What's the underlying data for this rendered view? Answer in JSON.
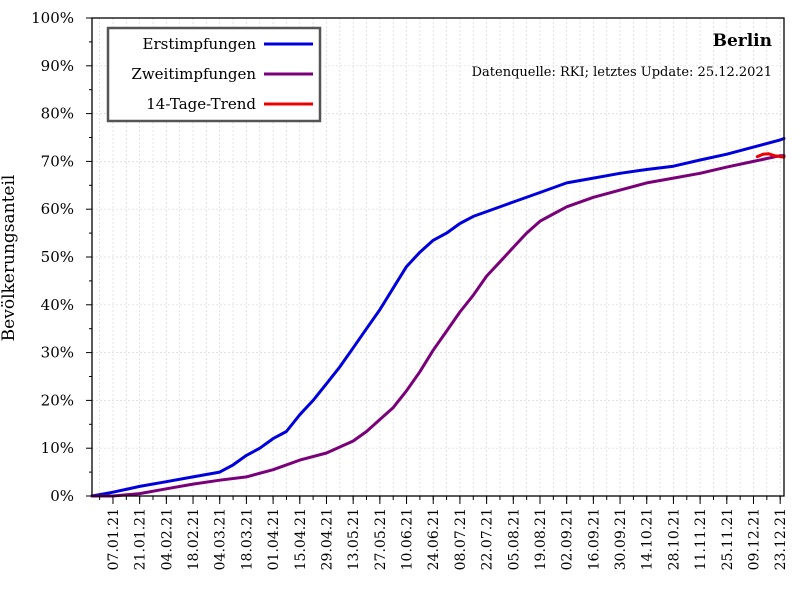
{
  "chart_data": {
    "type": "line",
    "title": "Berlin",
    "subtitle": "Datenquelle: RKI; letztes Update: 25.12.2021",
    "ylabel": "Bevölkerungsanteil",
    "xlabel": "",
    "ylim": [
      0,
      100
    ],
    "y_ticks": [
      "0%",
      "10%",
      "20%",
      "30%",
      "40%",
      "50%",
      "60%",
      "70%",
      "80%",
      "90%",
      "100%"
    ],
    "x_tick_labels": [
      "07.01.21",
      "21.01.21",
      "04.02.21",
      "18.02.21",
      "04.03.21",
      "18.03.21",
      "01.04.21",
      "15.04.21",
      "29.04.21",
      "13.05.21",
      "27.05.21",
      "10.06.21",
      "24.06.21",
      "08.07.21",
      "22.07.21",
      "05.08.21",
      "19.08.21",
      "02.09.21",
      "16.09.21",
      "30.09.21",
      "14.10.21",
      "28.10.21",
      "11.11.21",
      "25.11.21",
      "09.12.21",
      "23.12.21"
    ],
    "x_range": [
      "2020-12-27",
      "2021-12-25"
    ],
    "grid": true,
    "legend_position": "top-left",
    "series": [
      {
        "name": "Erstimpfungen",
        "color": "#0000dd",
        "x": [
          "2020-12-27",
          "2021-01-07",
          "2021-01-21",
          "2021-02-04",
          "2021-02-18",
          "2021-03-04",
          "2021-03-11",
          "2021-03-18",
          "2021-03-25",
          "2021-04-01",
          "2021-04-08",
          "2021-04-15",
          "2021-04-22",
          "2021-04-29",
          "2021-05-06",
          "2021-05-13",
          "2021-05-20",
          "2021-05-27",
          "2021-06-03",
          "2021-06-10",
          "2021-06-17",
          "2021-06-24",
          "2021-07-01",
          "2021-07-08",
          "2021-07-15",
          "2021-07-22",
          "2021-08-05",
          "2021-08-19",
          "2021-09-02",
          "2021-09-16",
          "2021-09-30",
          "2021-10-14",
          "2021-10-28",
          "2021-11-11",
          "2021-11-25",
          "2021-12-09",
          "2021-12-23",
          "2021-12-25"
        ],
        "values": [
          0,
          0.8,
          2,
          3,
          4,
          5,
          6.5,
          8.5,
          10,
          12,
          13.5,
          17,
          20,
          23.5,
          27,
          31,
          35,
          39,
          43.5,
          48,
          51,
          53.5,
          55,
          57,
          58.5,
          59.5,
          61.5,
          63.5,
          65.5,
          66.5,
          67.5,
          68.3,
          69,
          70.3,
          71.5,
          73,
          74.5,
          74.8
        ]
      },
      {
        "name": "Zweitimpfungen",
        "color": "#7a007a",
        "x": [
          "2020-12-27",
          "2021-01-07",
          "2021-01-21",
          "2021-02-04",
          "2021-02-18",
          "2021-03-04",
          "2021-03-18",
          "2021-04-01",
          "2021-04-15",
          "2021-04-29",
          "2021-05-13",
          "2021-05-20",
          "2021-05-27",
          "2021-06-03",
          "2021-06-10",
          "2021-06-17",
          "2021-06-24",
          "2021-07-01",
          "2021-07-08",
          "2021-07-15",
          "2021-07-22",
          "2021-07-29",
          "2021-08-05",
          "2021-08-12",
          "2021-08-19",
          "2021-08-26",
          "2021-09-02",
          "2021-09-16",
          "2021-09-30",
          "2021-10-14",
          "2021-10-28",
          "2021-11-11",
          "2021-11-25",
          "2021-12-09",
          "2021-12-23",
          "2021-12-25"
        ],
        "values": [
          0,
          0,
          0.5,
          1.5,
          2.5,
          3.3,
          4,
          5.5,
          7.5,
          9,
          11.5,
          13.5,
          16,
          18.5,
          22,
          26,
          30.5,
          34.5,
          38.5,
          42,
          46,
          49,
          52,
          55,
          57.5,
          59,
          60.5,
          62.5,
          64,
          65.5,
          66.5,
          67.5,
          68.8,
          70,
          71.2,
          71.2
        ]
      },
      {
        "name": "14-Tage-Trend",
        "color": "#ee0000",
        "x": [
          "2021-12-11",
          "2021-12-14",
          "2021-12-17",
          "2021-12-20",
          "2021-12-23",
          "2021-12-25"
        ],
        "values": [
          71,
          71.5,
          71.6,
          71.2,
          71,
          70.9
        ]
      }
    ]
  }
}
